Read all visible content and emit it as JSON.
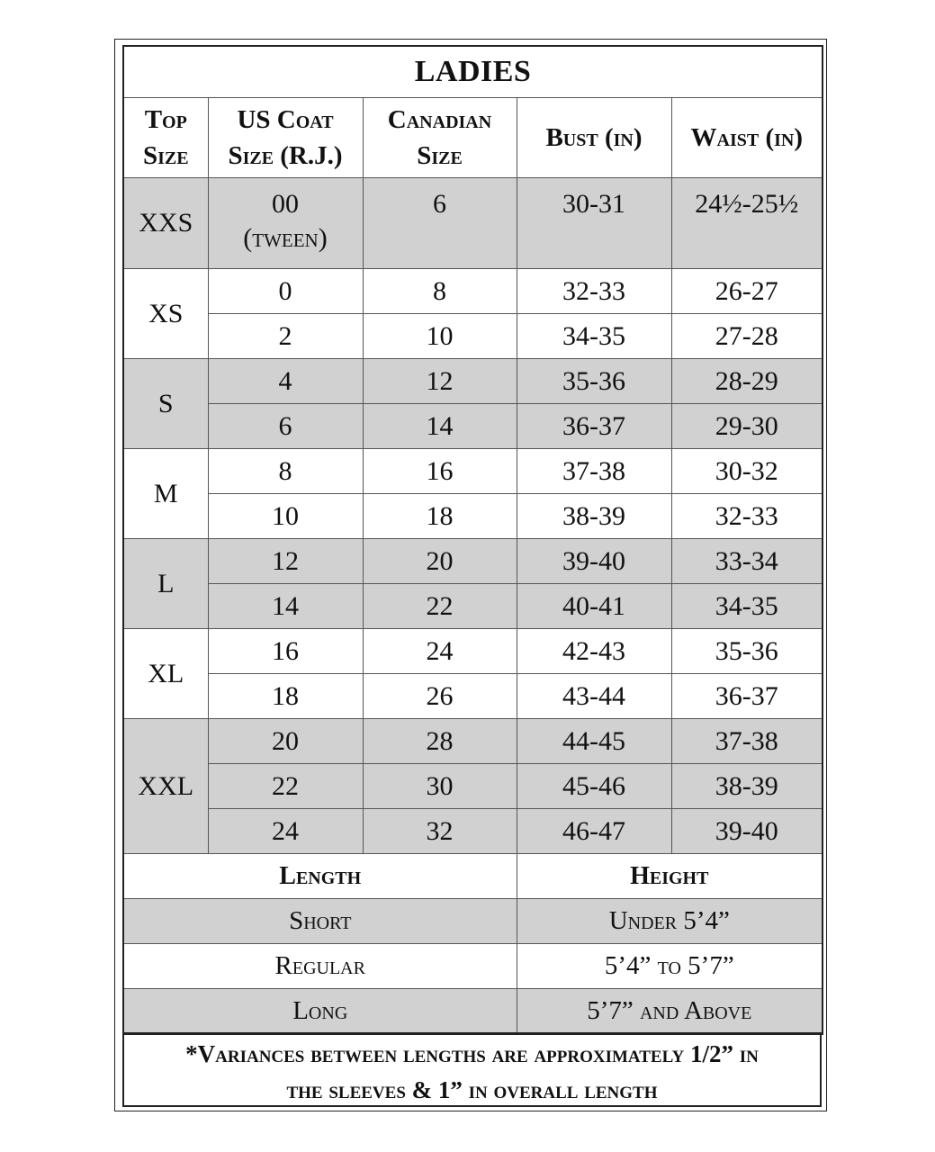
{
  "title": "LADIES",
  "headers": [
    "Top Size",
    "US Coat Size (R.J.)",
    "Canadian Size",
    "Bust (in)",
    "Waist (in)"
  ],
  "header_lines": [
    [
      "Top",
      "Size"
    ],
    [
      "US Coat",
      "Size (R.J.)"
    ],
    [
      "Canadian",
      "Size"
    ],
    [
      "Bust (in)"
    ],
    [
      "Waist (in)"
    ]
  ],
  "shade_color": "#d1d1d1",
  "groups": [
    {
      "top": "XXS",
      "shaded": true,
      "rows": [
        {
          "us": "00",
          "us_note": "(tween)",
          "ca": "6",
          "bust": "30-31",
          "waist": "24½-25½"
        }
      ]
    },
    {
      "top": "XS",
      "shaded": false,
      "rows": [
        {
          "us": "0",
          "ca": "8",
          "bust": "32-33",
          "waist": "26-27"
        },
        {
          "us": "2",
          "ca": "10",
          "bust": "34-35",
          "waist": "27-28"
        }
      ]
    },
    {
      "top": "S",
      "shaded": true,
      "rows": [
        {
          "us": "4",
          "ca": "12",
          "bust": "35-36",
          "waist": "28-29"
        },
        {
          "us": "6",
          "ca": "14",
          "bust": "36-37",
          "waist": "29-30"
        }
      ]
    },
    {
      "top": "M",
      "shaded": false,
      "rows": [
        {
          "us": "8",
          "ca": "16",
          "bust": "37-38",
          "waist": "30-32"
        },
        {
          "us": "10",
          "ca": "18",
          "bust": "38-39",
          "waist": "32-33"
        }
      ]
    },
    {
      "top": "L",
      "shaded": true,
      "rows": [
        {
          "us": "12",
          "ca": "20",
          "bust": "39-40",
          "waist": "33-34"
        },
        {
          "us": "14",
          "ca": "22",
          "bust": "40-41",
          "waist": "34-35"
        }
      ]
    },
    {
      "top": "XL",
      "shaded": false,
      "rows": [
        {
          "us": "16",
          "ca": "24",
          "bust": "42-43",
          "waist": "35-36"
        },
        {
          "us": "18",
          "ca": "26",
          "bust": "43-44",
          "waist": "36-37"
        }
      ]
    },
    {
      "top": "XXL",
      "shaded": true,
      "rows": [
        {
          "us": "20",
          "ca": "28",
          "bust": "44-45",
          "waist": "37-38"
        },
        {
          "us": "22",
          "ca": "30",
          "bust": "45-46",
          "waist": "38-39"
        },
        {
          "us": "24",
          "ca": "32",
          "bust": "46-47",
          "waist": "39-40"
        }
      ]
    }
  ],
  "length_table": {
    "headers": [
      "Length",
      "Height"
    ],
    "rows": [
      {
        "length": "Short",
        "height": "Under 5’4”",
        "shaded": true
      },
      {
        "length": "Regular",
        "height": "5’4” to 5’7”",
        "shaded": false
      },
      {
        "length": "Long",
        "height": "5’7” and Above",
        "shaded": true
      }
    ]
  },
  "footnote": {
    "line1": "*Variances between lengths are approximately 1/2” in",
    "line2": "the sleeves & 1” in overall length"
  }
}
